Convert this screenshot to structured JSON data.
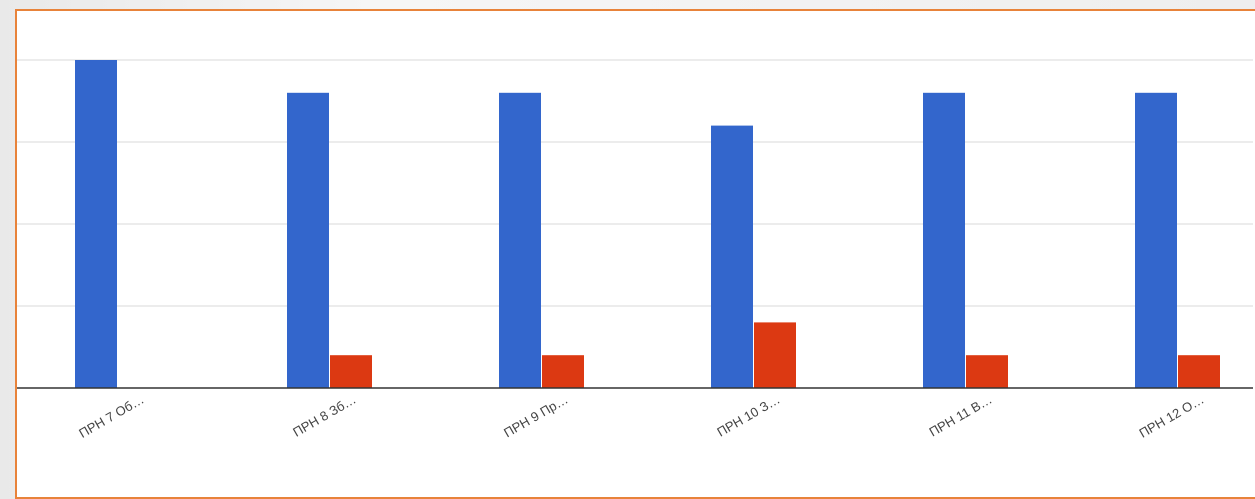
{
  "chart_data": {
    "type": "bar",
    "categories": [
      "ПРН 7 Об…",
      "ПРН 8 Зб…",
      "ПРН 9 Пр…",
      "ПРН 10 З…",
      "ПРН 11 В…",
      "ПРН 12 О…"
    ],
    "series": [
      {
        "color": "#3366cc",
        "values": [
          10,
          9,
          9,
          8,
          9,
          9
        ]
      },
      {
        "color": "#dc3912",
        "values": [
          0,
          1,
          1,
          2,
          1,
          1
        ]
      }
    ],
    "ylim": [
      0,
      10
    ],
    "yticks": [
      0,
      2.5,
      5,
      7.5,
      10
    ],
    "grid": true
  }
}
